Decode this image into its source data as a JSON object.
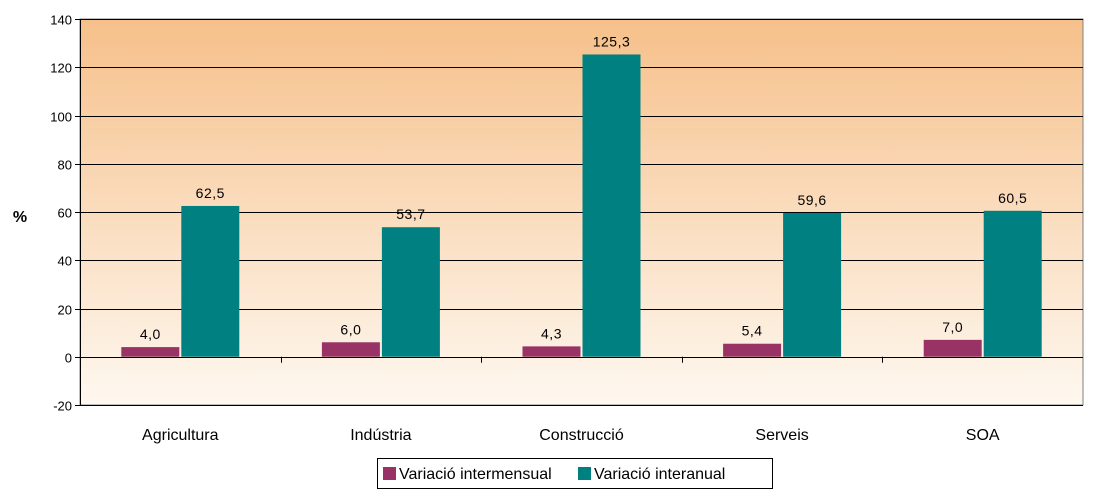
{
  "chart_data": {
    "type": "bar",
    "title": "",
    "xlabel": "",
    "ylabel": "%",
    "ylim": [
      -20,
      140
    ],
    "yticks": [
      -20,
      0,
      20,
      40,
      60,
      80,
      100,
      120,
      140
    ],
    "grid": true,
    "legend_position": "bottom",
    "categories": [
      "Agricultura",
      "Indústria",
      "Construcció",
      "Serveis",
      "SOA"
    ],
    "series": [
      {
        "name": "Variació intermensual",
        "color": "#993366",
        "values": [
          4.0,
          6.0,
          4.3,
          5.4,
          7.0
        ],
        "labels": [
          "4,0",
          "6,0",
          "4,3",
          "5,4",
          "7,0"
        ]
      },
      {
        "name": "Variació interanual",
        "color": "#008080",
        "values": [
          62.5,
          53.7,
          125.3,
          59.6,
          60.5
        ],
        "labels": [
          "62,5",
          "53,7",
          "125,3",
          "59,6",
          "60,5"
        ]
      }
    ],
    "colors": {
      "plot_bg_top": "#F6C08A",
      "plot_bg_bottom": "#FEF8F0",
      "gridline": "#000000"
    }
  }
}
